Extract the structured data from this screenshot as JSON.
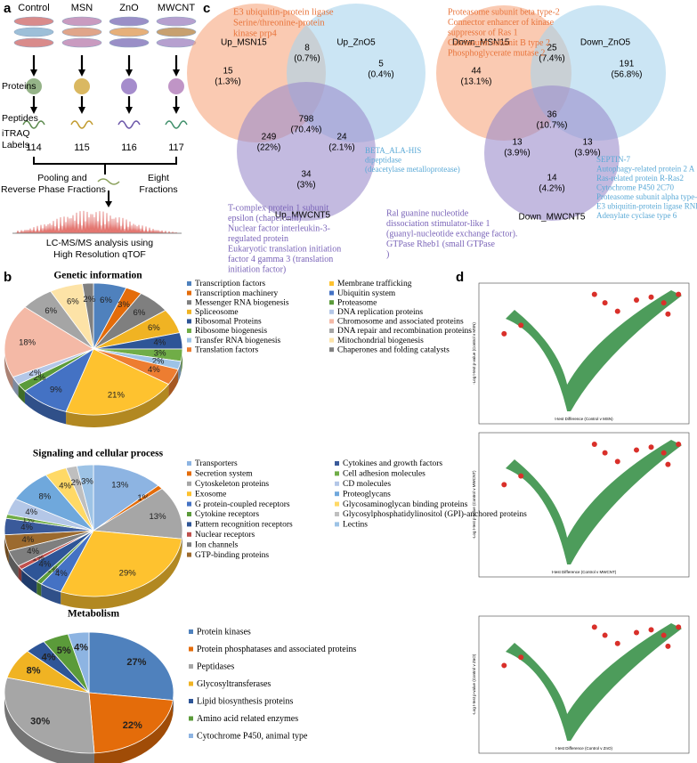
{
  "panel_labels": [
    "a",
    "b",
    "c",
    "d"
  ],
  "workflow": {
    "groups": [
      "Control",
      "MSN",
      "ZnO",
      "MWCNT"
    ],
    "proteins": "Proteins",
    "peptides": "Peptides",
    "itraq": [
      "iTRAQ",
      "Labels"
    ],
    "labels": [
      "114",
      "115",
      "116",
      "117"
    ],
    "pooling": [
      "Pooling and",
      "Reverse Phase Fractions"
    ],
    "eight": [
      "Eight",
      "Fractions"
    ],
    "lcms": [
      "LC-MS/MS analysis using",
      "High Resolution qTOF"
    ]
  },
  "venns": [
    {
      "sets": [
        "Up_MSN15",
        "Up_ZnO5",
        "Up_MWCNT5"
      ],
      "regions": [
        {
          "count": 15,
          "pct": "(1.3%)"
        },
        {
          "count": 8,
          "pct": "(0.7%)"
        },
        {
          "count": 5,
          "pct": "(0.4%)"
        },
        {
          "count": 798,
          "pct": "(70.4%)"
        },
        {
          "count": 249,
          "pct": "(22%)"
        },
        {
          "count": 24,
          "pct": "(2.1%)"
        },
        {
          "count": 34,
          "pct": "(3%)"
        }
      ],
      "notes": [
        {
          "lines": [
            "E3 ubiquitin-protein ligase",
            "Serine/threonine-protein",
            "kinase prp4"
          ]
        },
        {
          "lines": [
            "BETA_ALA-HIS",
            "dipeptidase",
            "(deacetylase metalloprotease)"
          ]
        },
        {
          "lines": [
            "T-complex protein 1 subunit",
            "epsilon (chaperonin)",
            "Nuclear factor interleukin-3-",
            "regulated protein",
            "Eukaryotic translation initiation",
            "factor 4 gamma 3 (translation",
            "initiation factor)"
          ]
        }
      ]
    },
    {
      "sets": [
        "Down_MSN15",
        "Down_ZnO5",
        "Down_MWCNT5"
      ],
      "regions": [
        {
          "count": 44,
          "pct": "(13.1%)"
        },
        {
          "count": 25,
          "pct": "(7.4%)"
        },
        {
          "count": 191,
          "pct": "(56.8%)"
        },
        {
          "count": 36,
          "pct": "(10.7%)"
        },
        {
          "count": 13,
          "pct": "(3.9%)"
        },
        {
          "count": 13,
          "pct": "(3.9%)"
        },
        {
          "count": 14,
          "pct": "(4.2%)"
        }
      ],
      "notes": [
        {
          "lines": [
            "Proteasome subunit beta type-2",
            "Connector enhancer of kinase",
            "suppressor of Ras 1",
            "Calcineurin subunit B type 2",
            "Phosphoglycerate mutase 2"
          ]
        },
        {
          "lines": [
            "SEPTIN-7",
            "Autophagy-related protein 2  A",
            "Ras-related protein R-Ras2",
            "Cytochrome P450 2C70",
            "Proteasome subunit alpha type-3",
            "E3 ubiquitin-protein ligase RNF213",
            "Adenylate cyclase type 6"
          ]
        },
        {
          "lines": [
            "Ral guanine nucleotide",
            "dissociation stimulator-like 1",
            "(guanyl-nucleotide exchange factor).",
            "GTPase Rheb1 (small GTPase",
            ")"
          ]
        }
      ]
    }
  ],
  "chart_data": [
    {
      "type": "pie",
      "title": "Genetic information",
      "categories": [
        "Transcription factors",
        "Transcription machinery",
        "Messenger RNA biogenesis",
        "Spliceosome",
        "Ribosomal Proteins",
        "Ribosome biogenesis",
        "Transfer RNA biogenesis",
        "Translation factors",
        "Membrane trafficking",
        "Ubiquitin system",
        "Proteasome",
        "DNA replication proteins",
        "Chromosome and associated proteins",
        "DNA repair and recombination proteins",
        "Mitochondrial biogenesis",
        "Chaperones and folding catalysts"
      ],
      "values": [
        6,
        3,
        6,
        6,
        4,
        3,
        2,
        4,
        21,
        9,
        2,
        2,
        18,
        6,
        6,
        2
      ],
      "value_labels": [
        "6%",
        "3%",
        "6%",
        "6%",
        "4%",
        "3%",
        "2%",
        "4%",
        "21%",
        "9%",
        "2%",
        "2%",
        "18%",
        "6%",
        "6%",
        "2%"
      ],
      "colors": [
        "#4f81bd",
        "#e46c0a",
        "#7f7f7f",
        "#f0b323",
        "#2e5597",
        "#70ad47",
        "#9dc3e6",
        "#ed7d31",
        "#fec22f",
        "#4472c4",
        "#5b9b3a",
        "#b4c7e7",
        "#f4b9a6",
        "#a5a5a5",
        "#fde3a7",
        "#808080"
      ]
    },
    {
      "type": "pie",
      "title": "Signaling and cellular process",
      "categories": [
        "Transporters",
        "Secretion system",
        "Cytoskeleton proteins",
        "Exosome",
        "G protein-coupled receptors",
        "Cytokine receptors",
        "Pattern recognition receptors",
        "Nuclear receptors",
        "Ion channels",
        "GTP-binding proteins",
        "Cytokines and growth factors",
        "Cell adhesion molecules",
        "CD molecules",
        "Proteoglycans",
        "Glycosaminoglycan binding proteins",
        "Glycosylphosphatidylinositol (GPI)-anchored proteins",
        "Lectins"
      ],
      "values": [
        13,
        1,
        13,
        29,
        4,
        1,
        4,
        1,
        4,
        4,
        4,
        1,
        4,
        8,
        4,
        2,
        3
      ],
      "value_labels": [
        "13%",
        "1%",
        "13%",
        "29%",
        "4%",
        "1%",
        "4%",
        "1%",
        "4%",
        "4%",
        "4%",
        "1%",
        "4%",
        "8%",
        "4%",
        "2%",
        "3%"
      ],
      "colors": [
        "#8db4e2",
        "#e46c0a",
        "#a6a6a6",
        "#fec22f",
        "#4472c4",
        "#5b9b3a",
        "#2e5597",
        "#c0504d",
        "#7f7f7f",
        "#9c6a2e",
        "#3a5a9a",
        "#70ad47",
        "#b4c7e7",
        "#6fa8dc",
        "#ffd966",
        "#bfbfbf",
        "#9dc3e6"
      ]
    },
    {
      "type": "pie",
      "title": "Metabolism",
      "categories": [
        "Protein kinases",
        "Protein phosphatases and  associated proteins",
        "Peptidases",
        "Glycosyltransferases",
        "Lipid biosynthesis proteins",
        "Amino acid related enzymes",
        "Cytochrome P450, animal type"
      ],
      "values": [
        27,
        22,
        30,
        8,
        4,
        5,
        4
      ],
      "value_labels": [
        "27%",
        "22%",
        "30%",
        "8%",
        "4%",
        "5%",
        "4%"
      ],
      "colors": [
        "#4f81bd",
        "#e46c0a",
        "#a6a6a6",
        "#f0b323",
        "#2e5597",
        "#5b9b3a",
        "#8db4e2"
      ]
    }
  ],
  "volcanoes": [
    {
      "xlabel": "t-test Difference (Control v MSN)",
      "ylabel": "-Log t-test p-value (Control v MSN)"
    },
    {
      "xlabel": "t-test Difference (Control v MWCNT)",
      "ylabel": "-Log t-test p-value (Control v MWCNT)"
    },
    {
      "xlabel": "t-test Difference (Control v ZnO)",
      "ylabel": "-Log t-test p-value (Control v ZnO)"
    }
  ]
}
